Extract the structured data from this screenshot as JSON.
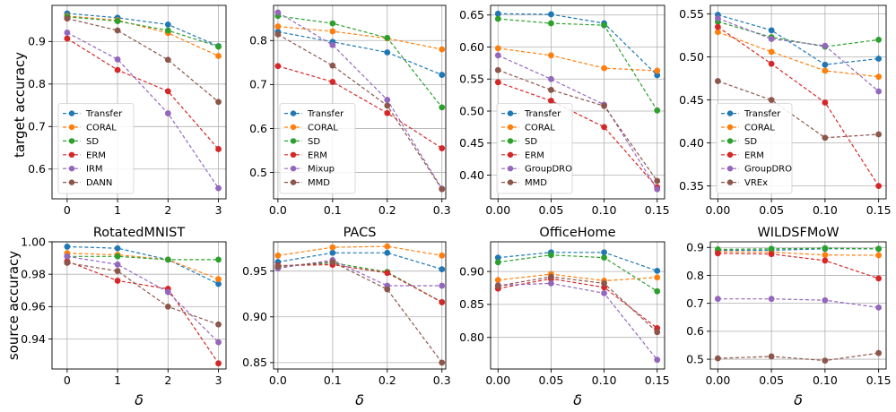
{
  "row_labels": [
    "target accuracy",
    "source accuracy"
  ],
  "col_titles": [
    "",
    "",
    "",
    "",
    "RotatedMNIST",
    "PACS",
    "OfficeHome",
    "WILDSFMoW"
  ],
  "xlabel": "δ",
  "colors": {
    "Transfer": "#1f77b4",
    "CORAL": "#ff7f0e",
    "SD": "#2ca02c",
    "ERM": "#d62728",
    "IRM": "#9467bd",
    "Mixup": "#9467bd",
    "GroupDRO": "#9467bd",
    "DANN": "#8c564b",
    "MMD": "#8c564b",
    "VREx": "#8c564b"
  },
  "chart_data": [
    {
      "type": "line",
      "row": 0,
      "col": 0,
      "title": "",
      "ylabel": "target accuracy",
      "xlabel": "",
      "x": [
        0,
        1,
        2,
        3
      ],
      "xticks": [
        "0",
        "1",
        "2",
        "3"
      ],
      "xlim": [
        -0.3,
        3.15
      ],
      "ylim": [
        0.53,
        0.985
      ],
      "yticks": [
        0.6,
        0.7,
        0.8,
        0.9
      ],
      "ytick_labels": [
        "0.6",
        "0.7",
        "0.8",
        "0.9"
      ],
      "grid": true,
      "legend": "bottom-left",
      "series": [
        {
          "name": "Transfer",
          "values": [
            0.966,
            0.956,
            0.94,
            0.889
          ]
        },
        {
          "name": "CORAL",
          "values": [
            0.96,
            0.95,
            0.92,
            0.866
          ]
        },
        {
          "name": "SD",
          "values": [
            0.958,
            0.948,
            0.926,
            0.888
          ]
        },
        {
          "name": "ERM",
          "values": [
            0.907,
            0.833,
            0.783,
            0.647
          ]
        },
        {
          "name": "IRM",
          "values": [
            0.921,
            0.858,
            0.731,
            0.555
          ]
        },
        {
          "name": "DANN",
          "values": [
            0.954,
            0.926,
            0.857,
            0.758
          ]
        }
      ]
    },
    {
      "type": "line",
      "row": 0,
      "col": 1,
      "title": "",
      "ylabel": "",
      "xlabel": "",
      "x": [
        0,
        0.1,
        0.2,
        0.3
      ],
      "xticks": [
        "0.0",
        "0.1",
        "0.2",
        "0.3"
      ],
      "xlim": [
        -0.008,
        0.307
      ],
      "ylim": [
        0.44,
        0.88
      ],
      "yticks": [
        0.5,
        0.6,
        0.7,
        0.8
      ],
      "ytick_labels": [
        "0.5",
        "0.6",
        "0.7",
        "0.8"
      ],
      "grid": true,
      "legend": "bottom-left",
      "series": [
        {
          "name": "Transfer",
          "values": [
            0.82,
            0.797,
            0.773,
            0.722
          ]
        },
        {
          "name": "CORAL",
          "values": [
            0.832,
            0.821,
            0.805,
            0.78
          ]
        },
        {
          "name": "SD",
          "values": [
            0.856,
            0.839,
            0.806,
            0.648
          ]
        },
        {
          "name": "ERM",
          "values": [
            0.742,
            0.706,
            0.635,
            0.555
          ]
        },
        {
          "name": "Mixup",
          "values": [
            0.864,
            0.79,
            0.665,
            0.463
          ]
        },
        {
          "name": "MMD",
          "values": [
            0.814,
            0.743,
            0.652,
            0.462
          ]
        }
      ]
    },
    {
      "type": "line",
      "row": 0,
      "col": 2,
      "title": "",
      "ylabel": "",
      "xlabel": "",
      "x": [
        0,
        0.05,
        0.1,
        0.15
      ],
      "xticks": [
        "0.00",
        "0.05",
        "0.10",
        "0.15"
      ],
      "xlim": [
        -0.007,
        0.157
      ],
      "ylim": [
        0.363,
        0.665
      ],
      "yticks": [
        0.4,
        0.45,
        0.5,
        0.55,
        0.6,
        0.65
      ],
      "ytick_labels": [
        "0.40",
        "0.45",
        "0.50",
        "0.55",
        "0.60",
        "0.65"
      ],
      "grid": true,
      "legend": "bottom-left",
      "series": [
        {
          "name": "Transfer",
          "values": [
            0.652,
            0.651,
            0.637,
            0.556
          ]
        },
        {
          "name": "CORAL",
          "values": [
            0.598,
            0.587,
            0.567,
            0.563
          ]
        },
        {
          "name": "SD",
          "values": [
            0.644,
            0.637,
            0.634,
            0.501
          ]
        },
        {
          "name": "ERM",
          "values": [
            0.545,
            0.516,
            0.475,
            0.381
          ]
        },
        {
          "name": "GroupDRO",
          "values": [
            0.587,
            0.55,
            0.51,
            0.378
          ]
        },
        {
          "name": "MMD",
          "values": [
            0.564,
            0.533,
            0.508,
            0.391
          ]
        }
      ]
    },
    {
      "type": "line",
      "row": 0,
      "col": 3,
      "title": "",
      "ylabel": "",
      "xlabel": "",
      "x": [
        0,
        0.05,
        0.1,
        0.15
      ],
      "xticks": [
        "0.00",
        "0.05",
        "0.10",
        "0.15"
      ],
      "xlim": [
        -0.007,
        0.157
      ],
      "ylim": [
        0.335,
        0.56
      ],
      "yticks": [
        0.35,
        0.4,
        0.45,
        0.5,
        0.55
      ],
      "ytick_labels": [
        "0.35",
        "0.40",
        "0.45",
        "0.50",
        "0.55"
      ],
      "grid": true,
      "legend": "bottom-left",
      "series": [
        {
          "name": "Transfer",
          "values": [
            0.549,
            0.531,
            0.491,
            0.498
          ]
        },
        {
          "name": "CORAL",
          "values": [
            0.529,
            0.506,
            0.484,
            0.477
          ]
        },
        {
          "name": "SD",
          "values": [
            0.541,
            0.523,
            0.512,
            0.52
          ]
        },
        {
          "name": "ERM",
          "values": [
            0.535,
            0.492,
            0.447,
            0.35
          ]
        },
        {
          "name": "GroupDRO",
          "values": [
            0.545,
            0.521,
            0.513,
            0.46
          ]
        },
        {
          "name": "VREx",
          "values": [
            0.472,
            0.45,
            0.406,
            0.41
          ]
        }
      ]
    },
    {
      "type": "line",
      "row": 1,
      "col": 0,
      "title": "RotatedMNIST",
      "ylabel": "source accuracy",
      "xlabel": "δ",
      "x": [
        0,
        1,
        2,
        3
      ],
      "xticks": [
        "0",
        "1",
        "2",
        "3"
      ],
      "xlim": [
        -0.3,
        3.15
      ],
      "ylim": [
        0.9215,
        1.0
      ],
      "yticks": [
        0.94,
        0.96,
        0.98,
        1.0
      ],
      "ytick_labels": [
        "0.94",
        "0.96",
        "0.98",
        "1.00"
      ],
      "grid": true,
      "legend": "none",
      "series": [
        {
          "name": "Transfer",
          "values": [
            0.997,
            0.996,
            0.989,
            0.974
          ]
        },
        {
          "name": "CORAL",
          "values": [
            0.993,
            0.992,
            0.989,
            0.977
          ]
        },
        {
          "name": "SD",
          "values": [
            0.991,
            0.991,
            0.989,
            0.989
          ]
        },
        {
          "name": "ERM",
          "values": [
            0.988,
            0.976,
            0.971,
            0.925
          ]
        },
        {
          "name": "IRM",
          "values": [
            0.991,
            0.986,
            0.969,
            0.938
          ]
        },
        {
          "name": "DANN",
          "values": [
            0.987,
            0.982,
            0.96,
            0.949
          ]
        }
      ]
    },
    {
      "type": "line",
      "row": 1,
      "col": 1,
      "title": "PACS",
      "ylabel": "",
      "xlabel": "δ",
      "x": [
        0,
        0.1,
        0.2,
        0.3
      ],
      "xticks": [
        "0.0",
        "0.1",
        "0.2",
        "0.3"
      ],
      "xlim": [
        -0.008,
        0.307
      ],
      "ylim": [
        0.843,
        0.982
      ],
      "yticks": [
        0.85,
        0.9,
        0.95
      ],
      "ytick_labels": [
        "0.85",
        "0.90",
        "0.95"
      ],
      "grid": true,
      "legend": "none",
      "series": [
        {
          "name": "Transfer",
          "values": [
            0.96,
            0.97,
            0.97,
            0.952
          ]
        },
        {
          "name": "CORAL",
          "values": [
            0.967,
            0.976,
            0.977,
            0.967
          ]
        },
        {
          "name": "SD",
          "values": [
            0.955,
            0.959,
            0.949,
            0.916
          ]
        },
        {
          "name": "ERM",
          "values": [
            0.956,
            0.957,
            0.948,
            0.916
          ]
        },
        {
          "name": "Mixup",
          "values": [
            0.953,
            0.962,
            0.934,
            0.934
          ]
        },
        {
          "name": "MMD",
          "values": [
            0.955,
            0.96,
            0.93,
            0.85
          ]
        }
      ]
    },
    {
      "type": "line",
      "row": 1,
      "col": 2,
      "title": "OfficeHome",
      "ylabel": "",
      "xlabel": "δ",
      "x": [
        0,
        0.05,
        0.1,
        0.15
      ],
      "xticks": [
        "0.00",
        "0.05",
        "0.10",
        "0.15"
      ],
      "xlim": [
        -0.007,
        0.157
      ],
      "ylim": [
        0.752,
        0.945
      ],
      "yticks": [
        0.8,
        0.85,
        0.9
      ],
      "ytick_labels": [
        "0.80",
        "0.85",
        "0.90"
      ],
      "grid": true,
      "legend": "none",
      "series": [
        {
          "name": "Transfer",
          "values": [
            0.921,
            0.929,
            0.929,
            0.901
          ]
        },
        {
          "name": "CORAL",
          "values": [
            0.887,
            0.896,
            0.886,
            0.891
          ]
        },
        {
          "name": "SD",
          "values": [
            0.914,
            0.925,
            0.921,
            0.87
          ]
        },
        {
          "name": "ERM",
          "values": [
            0.874,
            0.889,
            0.876,
            0.814
          ]
        },
        {
          "name": "GroupDRO",
          "values": [
            0.879,
            0.882,
            0.867,
            0.766
          ]
        },
        {
          "name": "MMD",
          "values": [
            0.878,
            0.892,
            0.882,
            0.808
          ]
        }
      ]
    },
    {
      "type": "line",
      "row": 1,
      "col": 3,
      "title": "WILDSFMoW",
      "ylabel": "",
      "xlabel": "δ",
      "x": [
        0,
        0.05,
        0.1,
        0.15
      ],
      "xticks": [
        "0.00",
        "0.05",
        "0.10",
        "0.15"
      ],
      "xlim": [
        -0.007,
        0.157
      ],
      "ylim": [
        0.465,
        0.92
      ],
      "yticks": [
        0.5,
        0.6,
        0.7,
        0.8,
        0.9
      ],
      "ytick_labels": [
        "0.5",
        "0.6",
        "0.7",
        "0.8",
        "0.9"
      ],
      "grid": true,
      "legend": "none",
      "series": [
        {
          "name": "Transfer",
          "values": [
            0.89,
            0.89,
            0.895,
            0.895
          ]
        },
        {
          "name": "CORAL",
          "values": [
            0.885,
            0.883,
            0.873,
            0.872
          ]
        },
        {
          "name": "SD",
          "values": [
            0.893,
            0.895,
            0.897,
            0.895
          ]
        },
        {
          "name": "ERM",
          "values": [
            0.879,
            0.876,
            0.853,
            0.789
          ]
        },
        {
          "name": "GroupDRO",
          "values": [
            0.716,
            0.716,
            0.711,
            0.685
          ]
        },
        {
          "name": "VREx",
          "values": [
            0.503,
            0.51,
            0.495,
            0.522
          ]
        }
      ]
    }
  ]
}
